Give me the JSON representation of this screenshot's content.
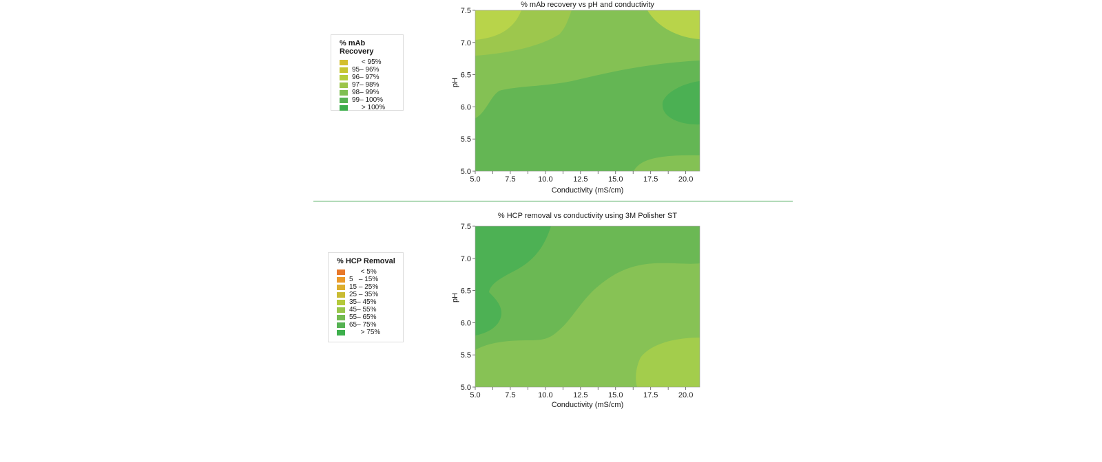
{
  "chart_data": [
    {
      "type": "contour",
      "title": "% mAb recovery vs pH and conductivity",
      "xlabel": "Conductivity (mS/cm)",
      "ylabel": "pH",
      "xlim": [
        5.0,
        21.0
      ],
      "ylim": [
        5.0,
        7.5
      ],
      "xticks": [
        "5.0",
        "7.5",
        "10.0",
        "12.5",
        "15.0",
        "17.5",
        "20.0"
      ],
      "yticks": [
        "5.0",
        "5.5",
        "6.0",
        "6.5",
        "7.0",
        "7.5"
      ],
      "legend": {
        "title": "% mAb Recovery",
        "placement": "left",
        "items": [
          {
            "label": "     < 95%",
            "color": "#d4bf2e"
          },
          {
            "label": "95– 96%",
            "color": "#c7c631"
          },
          {
            "label": "96– 97%",
            "color": "#b5cd3c"
          },
          {
            "label": "97– 98%",
            "color": "#9cc54a"
          },
          {
            "label": "98– 99%",
            "color": "#7fbf52"
          },
          {
            "label": "99– 100%",
            "color": "#55b252"
          },
          {
            "label": "     > 100%",
            "color": "#3daf4c"
          }
        ]
      },
      "regions": [
        {
          "level": "99– 100%",
          "color": "#64b654"
        },
        {
          "level": "98– 99%",
          "color": "#84c154"
        },
        {
          "level": "96– 97%",
          "color": "#b8d44a"
        },
        {
          "level": "> 100%",
          "color": "#4bb053"
        }
      ]
    },
    {
      "type": "contour",
      "title": "% HCP removal vs conductivity using 3M Polisher ST",
      "xlabel": "Conductivity (mS/cm)",
      "ylabel": "pH",
      "xlim": [
        5.0,
        21.0
      ],
      "ylim": [
        5.0,
        7.5
      ],
      "xticks": [
        "5.0",
        "7.5",
        "10.0",
        "12.5",
        "15.0",
        "17.5",
        "20.0"
      ],
      "yticks": [
        "5.0",
        "5.5",
        "6.0",
        "6.5",
        "7.0",
        "7.5"
      ],
      "legend": {
        "title": "% HCP Removal",
        "placement": "left",
        "items": [
          {
            "label": "      < 5%",
            "color": "#e8782a"
          },
          {
            "label": "5   – 15%",
            "color": "#eb9a2a"
          },
          {
            "label": "15 – 25%",
            "color": "#dcae2e"
          },
          {
            "label": "25 – 35%",
            "color": "#c9bb32"
          },
          {
            "label": "35– 45%",
            "color": "#b4c93a"
          },
          {
            "label": "45– 55%",
            "color": "#98c64a"
          },
          {
            "label": "55– 65%",
            "color": "#74bb51"
          },
          {
            "label": "65– 75%",
            "color": "#55b252"
          },
          {
            "label": "      > 75%",
            "color": "#3daf4c"
          }
        ]
      },
      "regions": [
        {
          "level": "55– 65%",
          "color": "#6bb854"
        },
        {
          "level": "45– 55%",
          "color": "#87c255"
        },
        {
          "level": "35– 45%",
          "color": "#a3cd4c"
        },
        {
          "level": "65– 75%",
          "color": "#4db154"
        }
      ]
    }
  ]
}
